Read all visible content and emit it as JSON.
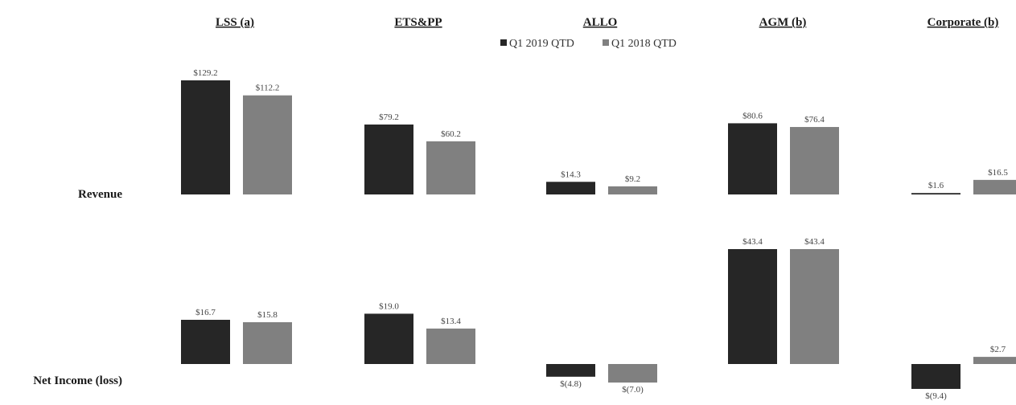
{
  "chart_data": {
    "type": "bar",
    "legend": {
      "placement": "top-center",
      "series_colors": [
        "#262626",
        "#808080"
      ]
    },
    "series": [
      {
        "name": "Q1 2019 QTD"
      },
      {
        "name": "Q1 2018 QTD"
      }
    ],
    "categories": [
      "LSS (a)",
      "ETS&PP",
      "ALLO",
      "AGM (b)",
      "Corporate (b)"
    ],
    "rows": [
      {
        "label": "Revenue",
        "values": [
          [
            129.2,
            112.2
          ],
          [
            79.2,
            60.2
          ],
          [
            14.3,
            9.2
          ],
          [
            80.6,
            76.4
          ],
          [
            1.6,
            16.5
          ]
        ],
        "value_labels": [
          [
            "$129.2",
            "$112.2"
          ],
          [
            "$79.2",
            "$60.2"
          ],
          [
            "$14.3",
            "$9.2"
          ],
          [
            "$80.6",
            "$76.4"
          ],
          [
            "$1.6",
            "$16.5"
          ]
        ]
      },
      {
        "label": "Net Income (loss)",
        "values": [
          [
            16.7,
            15.8
          ],
          [
            19.0,
            13.4
          ],
          [
            -4.8,
            -7.0
          ],
          [
            43.4,
            43.4
          ],
          [
            -9.4,
            2.7
          ]
        ],
        "value_labels": [
          [
            "$16.7",
            "$15.8"
          ],
          [
            "$19.0",
            "$13.4"
          ],
          [
            "$(4.8)",
            "$(7.0)"
          ],
          [
            "$43.4",
            "$43.4"
          ],
          [
            "$(9.4)",
            "$2.7"
          ]
        ]
      }
    ],
    "grid": false
  }
}
